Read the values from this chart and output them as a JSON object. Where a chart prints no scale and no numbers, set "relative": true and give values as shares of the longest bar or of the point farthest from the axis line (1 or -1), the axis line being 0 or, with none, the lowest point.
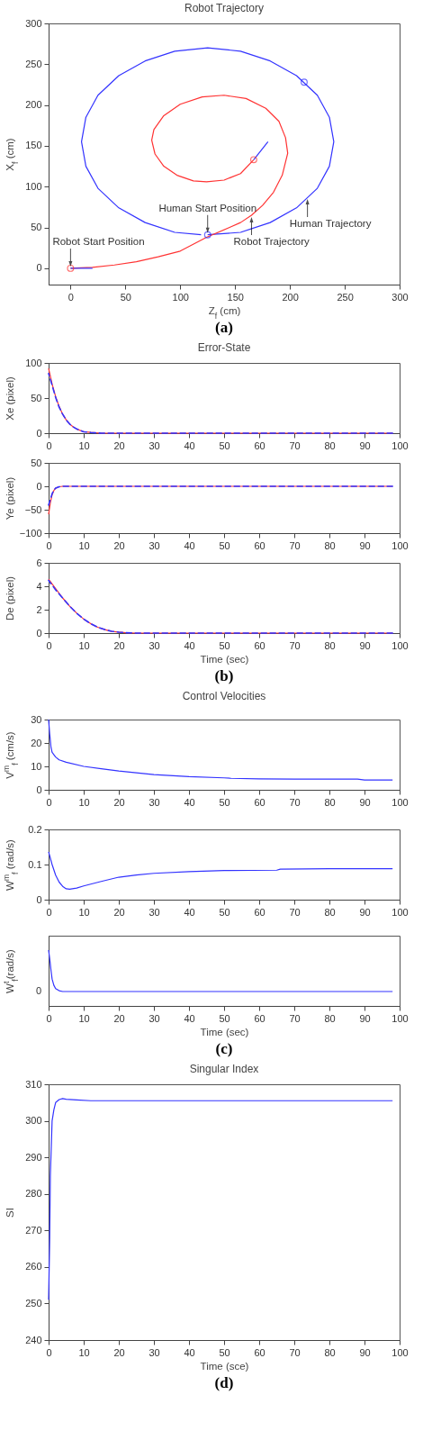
{
  "chart_data": [
    {
      "type": "line",
      "title": "Robot Trajectory",
      "xlabel": "Z$_{f}$ (cm)",
      "ylabel": "X$_{f}$ (cm)",
      "xlim": [
        -20,
        300
      ],
      "ylim": [
        -20,
        300
      ],
      "xticks": [
        0,
        50,
        100,
        150,
        200,
        250,
        300
      ],
      "yticks": [
        0,
        50,
        100,
        150,
        200,
        250,
        300
      ],
      "grid": false,
      "series": [
        {
          "color": "#3333ff",
          "x": [
            125,
            155,
            182,
            206,
            225,
            236,
            240,
            236,
            225,
            206,
            182,
            155,
            125,
            95,
            68,
            44,
            25,
            14,
            10,
            14,
            25,
            44,
            68,
            95,
            119
          ],
          "values": [
            41,
            44,
            56,
            74,
            98,
            125,
            155,
            185,
            212,
            236,
            254,
            266,
            270,
            266,
            254,
            236,
            212,
            185,
            155,
            125,
            98,
            74,
            56,
            44,
            41
          ]
        },
        {
          "color": "#ff3333",
          "x": [
            0,
            20,
            40,
            60,
            80,
            100,
            124,
            145,
            155,
            165,
            175,
            185,
            193,
            198,
            196,
            190,
            178,
            160,
            140,
            120,
            100,
            85,
            76,
            74,
            77,
            85,
            97,
            112,
            124,
            140,
            155,
            167
          ],
          "values": [
            0,
            1,
            4,
            8,
            14,
            21,
            38,
            50,
            56,
            65,
            77,
            93,
            114,
            141,
            160,
            180,
            196,
            208,
            212,
            210,
            201,
            187,
            170,
            157,
            140,
            125,
            114,
            107,
            106,
            108,
            116,
            133
          ]
        },
        {
          "color": "#3333ff",
          "x": [
            0,
            20
          ],
          "values": [
            0,
            0
          ]
        },
        {
          "color": "#3333ff",
          "x": [
            167,
            180
          ],
          "values": [
            133,
            155
          ]
        },
        {
          "type": "scatter",
          "marker": "circle",
          "color": "#ff3333",
          "x": [
            0,
            167
          ],
          "values": [
            0,
            133
          ]
        },
        {
          "type": "scatter",
          "marker": "circle",
          "color": "#3333ff",
          "x": [
            125,
            213
          ],
          "values": [
            41,
            228
          ]
        }
      ],
      "annotations": [
        {
          "text": "Robot Start Position",
          "x": 0,
          "y": 0
        },
        {
          "text": "Human Start Position",
          "x": 125,
          "y": 41
        },
        {
          "text": "Human Trajectory",
          "x": 216,
          "y": 87
        },
        {
          "text": "Robot Trajectory",
          "x": 165,
          "y": 65
        },
        "(a)"
      ]
    },
    {
      "type": "line",
      "title": "Error-State",
      "ylabel": "Xe (pixel)",
      "xlim": [
        0,
        100
      ],
      "ylim": [
        0,
        100
      ],
      "xticks": [
        0,
        10,
        20,
        30,
        40,
        50,
        60,
        70,
        80,
        90,
        100
      ],
      "yticks": [
        0,
        50,
        100
      ],
      "grid": false,
      "series": [
        {
          "color": "#ff3333",
          "line_style": "solid",
          "x": [
            0,
            1,
            2,
            3,
            4,
            5,
            6,
            7,
            8,
            10,
            12,
            15,
            98
          ],
          "values": [
            92,
            70,
            52,
            38,
            27,
            19,
            13,
            9,
            6,
            2,
            1,
            0,
            0
          ]
        },
        {
          "color": "#3333ff",
          "line_style": "dashed",
          "x": [
            0,
            1,
            2,
            3,
            4,
            5,
            6,
            7,
            8,
            10,
            12,
            15,
            98
          ],
          "values": [
            85,
            68,
            51,
            37,
            27,
            19,
            13,
            9,
            6,
            2,
            1,
            0,
            0
          ]
        }
      ]
    },
    {
      "type": "line",
      "ylabel": "Ye (pixel)",
      "xlim": [
        0,
        100
      ],
      "ylim": [
        -100,
        50
      ],
      "xticks": [
        0,
        10,
        20,
        30,
        40,
        50,
        60,
        70,
        80,
        90,
        100
      ],
      "yticks": [
        -100,
        -50,
        0,
        50
      ],
      "grid": false,
      "series": [
        {
          "color": "#ff3333",
          "line_style": "solid",
          "x": [
            0,
            0.5,
            1,
            1.5,
            2,
            3,
            4,
            98
          ],
          "values": [
            -60,
            -35,
            -18,
            -9,
            -4,
            -1,
            0,
            0
          ]
        },
        {
          "color": "#3333ff",
          "line_style": "dashed",
          "x": [
            0,
            0.5,
            1,
            1.5,
            2,
            3,
            4,
            98
          ],
          "values": [
            -40,
            -28,
            -16,
            -8,
            -4,
            -1,
            0,
            0
          ]
        }
      ]
    },
    {
      "type": "line",
      "xlabel": "Time (sec)",
      "ylabel": "De (pixel)",
      "xlim": [
        0,
        100
      ],
      "ylim": [
        0,
        6
      ],
      "xticks": [
        0,
        10,
        20,
        30,
        40,
        50,
        60,
        70,
        80,
        90,
        100
      ],
      "yticks": [
        0,
        2,
        4,
        6
      ],
      "grid": false,
      "series": [
        {
          "color": "#ff3333",
          "line_style": "solid",
          "x": [
            0,
            2,
            4,
            6,
            8,
            10,
            12,
            14,
            16,
            18,
            20,
            22,
            25,
            98
          ],
          "values": [
            4.6,
            3.8,
            3,
            2.3,
            1.7,
            1.2,
            0.8,
            0.5,
            0.3,
            0.15,
            0.08,
            0.03,
            0,
            0
          ]
        },
        {
          "color": "#3333ff",
          "line_style": "dashed",
          "x": [
            0,
            2,
            4,
            6,
            8,
            10,
            12,
            14,
            16,
            18,
            20,
            22,
            25,
            98
          ],
          "values": [
            4.5,
            3.7,
            3,
            2.3,
            1.7,
            1.2,
            0.8,
            0.5,
            0.3,
            0.15,
            0.08,
            0.03,
            0,
            0
          ]
        }
      ],
      "annotations": [
        "(b)"
      ]
    },
    {
      "type": "line",
      "title": "Control Velocities",
      "ylabel": "V$^{m}$$_{f}$ (cm/s)",
      "xlim": [
        0,
        100
      ],
      "ylim": [
        0,
        30
      ],
      "xticks": [
        0,
        10,
        20,
        30,
        40,
        50,
        60,
        70,
        80,
        90,
        100
      ],
      "yticks": [
        0,
        10,
        20,
        30
      ],
      "grid": false,
      "series": [
        {
          "color": "#3333ff",
          "x": [
            0,
            0.3,
            0.7,
            1,
            2,
            3,
            5,
            10,
            15,
            20,
            30,
            40,
            50,
            52,
            60,
            70,
            80,
            88,
            90,
            98
          ],
          "values": [
            30,
            24,
            18,
            16,
            14,
            12.8,
            11.8,
            10,
            9,
            8,
            6.5,
            5.6,
            5.1,
            4.9,
            4.7,
            4.6,
            4.6,
            4.6,
            4.2,
            4.2
          ]
        }
      ]
    },
    {
      "type": "line",
      "ylabel": "W$^{m}$$_{f}$ (rad/s)",
      "xlim": [
        0,
        100
      ],
      "ylim": [
        0,
        0.2
      ],
      "xticks": [
        0,
        10,
        20,
        30,
        40,
        50,
        60,
        70,
        80,
        90,
        100
      ],
      "yticks": [
        0,
        0.1,
        0.2
      ],
      "grid": false,
      "series": [
        {
          "color": "#3333ff",
          "x": [
            0,
            1,
            2,
            3,
            4,
            5,
            6,
            8,
            10,
            15,
            20,
            25,
            30,
            40,
            50,
            65,
            66,
            80,
            98
          ],
          "values": [
            0.136,
            0.1,
            0.07,
            0.05,
            0.038,
            0.031,
            0.03,
            0.033,
            0.039,
            0.052,
            0.064,
            0.07,
            0.075,
            0.08,
            0.083,
            0.084,
            0.087,
            0.088,
            0.088
          ]
        }
      ]
    },
    {
      "type": "line",
      "relative": true,
      "xlabel": "Time (sec)",
      "ylabel": "W$^{t}$$_{f}$(rad/s)",
      "xlim": [
        0,
        100
      ],
      "xticks": [
        0,
        10,
        20,
        30,
        40,
        50,
        60,
        70,
        80,
        90,
        100
      ],
      "grid": false,
      "series": [
        {
          "color": "#3333ff",
          "x": [
            0,
            0.3,
            0.7,
            1,
            1.5,
            2,
            3,
            4,
            98
          ],
          "values": [
            1,
            0.8,
            0.5,
            0.3,
            0.15,
            0.07,
            0.02,
            0,
            0
          ]
        }
      ],
      "annotations": [
        {
          "text": "0",
          "x": 4,
          "y": 0
        },
        "(c)"
      ]
    },
    {
      "type": "line",
      "title": "Singular Index",
      "xlabel": "Time (sce)",
      "ylabel": "SI",
      "xlim": [
        0,
        100
      ],
      "ylim": [
        240,
        310
      ],
      "xticks": [
        0,
        10,
        20,
        30,
        40,
        50,
        60,
        70,
        80,
        90,
        100
      ],
      "yticks": [
        240,
        250,
        260,
        270,
        280,
        290,
        300,
        310
      ],
      "grid": false,
      "series": [
        {
          "color": "#3333ff",
          "x": [
            0,
            0.3,
            0.5,
            1,
            1.5,
            2,
            3,
            4,
            5,
            8,
            12,
            98
          ],
          "values": [
            251,
            267,
            285,
            300,
            303,
            305,
            305.8,
            306.1,
            305.9,
            305.7,
            305.5,
            305.5
          ]
        }
      ],
      "annotations": [
        "(d)"
      ]
    }
  ]
}
